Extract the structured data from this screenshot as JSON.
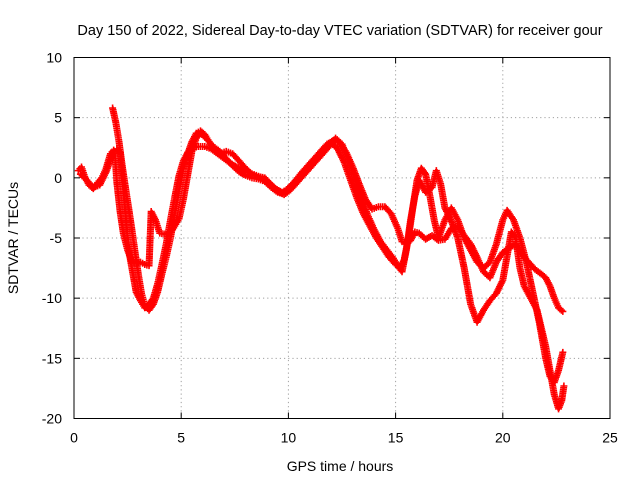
{
  "chart_data": {
    "type": "scatter",
    "title": "Day 150 of 2022, Sidereal Day-to-day VTEC variation (SDTVAR) for receiver gour",
    "xlabel": "GPS time / hours",
    "ylabel": "SDTVAR / TECUs",
    "xlim": [
      0,
      25
    ],
    "ylim": [
      -20,
      10
    ],
    "x_ticks": [
      0,
      5,
      10,
      15,
      20,
      25
    ],
    "y_ticks": [
      -20,
      -15,
      -10,
      -5,
      0,
      5,
      10
    ],
    "grid": true,
    "marker": "+",
    "marker_color": "#ff0000",
    "series": [
      {
        "values": [
          [
            0.2,
            0.6
          ],
          [
            0.35,
            0.9
          ],
          [
            0.5,
            0.1
          ],
          [
            0.7,
            -0.6
          ],
          [
            0.9,
            -0.9
          ],
          [
            1.1,
            -0.4
          ],
          [
            1.3,
            0.0
          ],
          [
            1.5,
            0.8
          ],
          [
            1.7,
            2.0
          ],
          [
            1.85,
            2.3
          ],
          [
            2.0,
            2.4
          ],
          [
            2.15,
            2.2
          ],
          [
            2.3,
            -1.0
          ],
          [
            2.45,
            -4.0
          ],
          [
            2.6,
            -6.5
          ],
          [
            2.75,
            -8.0
          ],
          [
            2.9,
            -9.5
          ],
          [
            3.1,
            -10.2
          ],
          [
            3.3,
            -10.8
          ],
          [
            3.5,
            -10.5
          ],
          [
            3.7,
            -10.0
          ],
          [
            3.9,
            -8.8
          ],
          [
            4.1,
            -7.2
          ],
          [
            4.3,
            -5.5
          ],
          [
            4.5,
            -3.5
          ],
          [
            4.7,
            -1.6
          ],
          [
            4.9,
            0.2
          ],
          [
            5.1,
            1.4
          ],
          [
            5.3,
            2.1
          ],
          [
            5.5,
            2.5
          ],
          [
            5.8,
            2.6
          ],
          [
            6.1,
            2.6
          ],
          [
            6.4,
            2.4
          ],
          [
            6.7,
            2.0
          ],
          [
            7.0,
            1.6
          ],
          [
            7.3,
            1.2
          ],
          [
            7.6,
            0.9
          ],
          [
            7.9,
            0.6
          ],
          [
            8.2,
            0.4
          ],
          [
            8.5,
            0.2
          ],
          [
            8.8,
            0.0
          ],
          [
            9.1,
            -0.4
          ],
          [
            9.4,
            -0.9
          ],
          [
            9.7,
            -1.2
          ],
          [
            9.9,
            -1.0
          ],
          [
            10.2,
            -0.5
          ],
          [
            10.5,
            0.1
          ],
          [
            10.8,
            0.6
          ],
          [
            11.1,
            1.2
          ],
          [
            11.4,
            1.8
          ],
          [
            11.7,
            2.3
          ],
          [
            12.0,
            2.9
          ],
          [
            12.3,
            2.4
          ],
          [
            12.6,
            1.3
          ],
          [
            12.9,
            -0.2
          ],
          [
            13.2,
            -1.7
          ],
          [
            13.5,
            -3.0
          ],
          [
            13.8,
            -4.0
          ],
          [
            14.1,
            -5.0
          ],
          [
            14.4,
            -5.8
          ],
          [
            14.7,
            -6.6
          ],
          [
            15.0,
            -7.2
          ],
          [
            15.2,
            -7.5
          ],
          [
            15.4,
            -6.8
          ],
          [
            15.6,
            -5.0
          ],
          [
            15.8,
            -2.5
          ],
          [
            16.0,
            -0.2
          ],
          [
            16.2,
            0.8
          ],
          [
            16.4,
            0.3
          ],
          [
            16.6,
            -1.5
          ],
          [
            16.8,
            -3.5
          ],
          [
            17.0,
            -5.0
          ],
          [
            17.3,
            -3.5
          ],
          [
            17.6,
            -2.5
          ],
          [
            17.9,
            -3.5
          ],
          [
            18.2,
            -5.0
          ],
          [
            18.5,
            -6.0
          ],
          [
            18.8,
            -7.0
          ],
          [
            19.1,
            -7.5
          ],
          [
            19.4,
            -7.0
          ],
          [
            19.7,
            -5.5
          ],
          [
            20.0,
            -3.5
          ],
          [
            20.2,
            -2.7
          ],
          [
            20.5,
            -3.5
          ],
          [
            20.8,
            -5.0
          ],
          [
            21.1,
            -7.0
          ],
          [
            21.4,
            -9.5
          ],
          [
            21.7,
            -12.0
          ],
          [
            22.0,
            -15.0
          ],
          [
            22.2,
            -16.5
          ],
          [
            22.4,
            -17.0
          ],
          [
            22.6,
            -16.0
          ],
          [
            22.8,
            -14.5
          ]
        ]
      },
      {
        "values": [
          [
            0.3,
            0.3
          ],
          [
            0.6,
            -0.2
          ],
          [
            0.9,
            -0.8
          ],
          [
            1.2,
            -0.6
          ],
          [
            1.5,
            0.5
          ],
          [
            1.7,
            1.5
          ],
          [
            1.9,
            2.2
          ],
          [
            2.0,
            -0.4
          ],
          [
            2.15,
            -2.8
          ],
          [
            2.3,
            -4.6
          ],
          [
            2.5,
            -6.0
          ],
          [
            2.7,
            -7.0
          ],
          [
            2.9,
            -7.1
          ],
          [
            3.1,
            -7.0
          ],
          [
            3.3,
            -7.2
          ],
          [
            3.5,
            -7.3
          ],
          [
            3.6,
            -2.8
          ],
          [
            3.8,
            -3.5
          ],
          [
            4.0,
            -4.6
          ],
          [
            4.3,
            -4.7
          ],
          [
            4.6,
            -4.3
          ],
          [
            4.9,
            -3.4
          ],
          [
            5.1,
            -1.8
          ],
          [
            5.3,
            0.2
          ],
          [
            5.5,
            2.2
          ],
          [
            5.7,
            3.3
          ],
          [
            5.9,
            3.7
          ],
          [
            6.1,
            3.4
          ],
          [
            6.3,
            3.0
          ],
          [
            6.5,
            2.6
          ],
          [
            6.8,
            2.2
          ],
          [
            7.1,
            1.6
          ],
          [
            7.4,
            1.0
          ],
          [
            7.7,
            0.5
          ],
          [
            8.0,
            0.2
          ],
          [
            8.3,
            0.0
          ],
          [
            8.6,
            -0.1
          ],
          [
            8.9,
            -0.3
          ],
          [
            9.2,
            -0.8
          ],
          [
            9.5,
            -1.2
          ],
          [
            9.7,
            -1.3
          ],
          [
            10.0,
            -0.9
          ],
          [
            10.3,
            -0.3
          ],
          [
            10.6,
            0.4
          ],
          [
            10.9,
            1.0
          ],
          [
            11.2,
            1.6
          ],
          [
            11.5,
            2.2
          ],
          [
            11.8,
            2.8
          ],
          [
            12.1,
            3.1
          ],
          [
            12.4,
            2.9
          ],
          [
            12.7,
            2.1
          ],
          [
            13.0,
            0.9
          ],
          [
            13.3,
            -0.5
          ],
          [
            13.6,
            -1.8
          ],
          [
            13.9,
            -2.6
          ],
          [
            14.2,
            -2.4
          ],
          [
            14.5,
            -2.4
          ],
          [
            14.8,
            -3.0
          ],
          [
            15.1,
            -4.2
          ],
          [
            15.3,
            -5.3
          ],
          [
            15.5,
            -5.5
          ],
          [
            15.7,
            -5.2
          ],
          [
            15.9,
            -4.5
          ],
          [
            16.1,
            -4.6
          ],
          [
            16.4,
            -5.1
          ],
          [
            16.7,
            -4.8
          ],
          [
            17.0,
            -5.2
          ],
          [
            17.3,
            -5.1
          ],
          [
            17.6,
            -4.2
          ],
          [
            17.9,
            -4.0
          ],
          [
            18.2,
            -4.8
          ],
          [
            18.5,
            -5.5
          ],
          [
            18.8,
            -6.6
          ],
          [
            19.1,
            -7.8
          ],
          [
            19.4,
            -8.3
          ],
          [
            19.7,
            -7.0
          ],
          [
            20.0,
            -6.2
          ],
          [
            20.3,
            -5.8
          ],
          [
            20.6,
            -5.5
          ],
          [
            20.9,
            -6.4
          ],
          [
            21.2,
            -7.0
          ],
          [
            21.5,
            -7.6
          ],
          [
            21.8,
            -8.0
          ],
          [
            22.0,
            -8.3
          ],
          [
            22.2,
            -9.0
          ],
          [
            22.4,
            -10.0
          ],
          [
            22.6,
            -10.8
          ],
          [
            22.8,
            -11.1
          ]
        ]
      },
      {
        "values": [
          [
            1.8,
            5.8
          ],
          [
            1.95,
            4.6
          ],
          [
            2.1,
            3.0
          ],
          [
            2.25,
            1.0
          ],
          [
            2.4,
            -0.8
          ],
          [
            2.55,
            -2.5
          ],
          [
            2.7,
            -4.3
          ],
          [
            2.85,
            -6.2
          ],
          [
            3.0,
            -8.0
          ],
          [
            3.15,
            -9.6
          ],
          [
            3.3,
            -10.6
          ],
          [
            3.5,
            -11.0
          ],
          [
            3.7,
            -10.5
          ],
          [
            3.9,
            -9.5
          ],
          [
            4.1,
            -8.0
          ],
          [
            4.3,
            -6.6
          ],
          [
            4.5,
            -5.0
          ],
          [
            4.7,
            -3.0
          ],
          [
            4.9,
            -1.0
          ],
          [
            5.1,
            0.8
          ],
          [
            5.3,
            2.0
          ],
          [
            5.5,
            3.0
          ],
          [
            5.7,
            3.7
          ],
          [
            5.9,
            3.9
          ],
          [
            6.1,
            3.6
          ],
          [
            6.3,
            3.0
          ],
          [
            6.5,
            2.4
          ],
          [
            6.8,
            2.0
          ],
          [
            7.1,
            2.2
          ],
          [
            7.4,
            2.0
          ],
          [
            7.7,
            1.4
          ],
          [
            8.0,
            0.8
          ],
          [
            8.3,
            0.3
          ],
          [
            8.6,
            0.1
          ],
          [
            8.9,
            0.0
          ],
          [
            9.2,
            -0.6
          ],
          [
            9.5,
            -1.1
          ],
          [
            9.8,
            -1.4
          ],
          [
            10.1,
            -1.0
          ],
          [
            10.4,
            -0.4
          ],
          [
            10.7,
            0.2
          ],
          [
            11.0,
            0.8
          ],
          [
            11.3,
            1.4
          ],
          [
            11.6,
            2.0
          ],
          [
            11.9,
            2.6
          ],
          [
            12.2,
            3.3
          ],
          [
            12.5,
            2.8
          ],
          [
            12.8,
            1.5
          ],
          [
            13.1,
            0.0
          ],
          [
            13.4,
            -1.6
          ],
          [
            13.7,
            -3.1
          ],
          [
            14.0,
            -4.3
          ],
          [
            14.3,
            -5.3
          ],
          [
            14.6,
            -6.0
          ],
          [
            14.9,
            -6.7
          ],
          [
            15.1,
            -7.3
          ],
          [
            15.3,
            -7.8
          ],
          [
            15.5,
            -6.0
          ],
          [
            15.7,
            -3.5
          ],
          [
            15.9,
            -1.5
          ],
          [
            16.1,
            -0.2
          ],
          [
            16.4,
            -1.2
          ],
          [
            16.7,
            -0.8
          ],
          [
            16.9,
            0.6
          ],
          [
            17.1,
            -0.5
          ],
          [
            17.3,
            -2.5
          ],
          [
            17.6,
            -3.6
          ],
          [
            17.9,
            -5.0
          ],
          [
            18.2,
            -7.5
          ],
          [
            18.5,
            -10.5
          ],
          [
            18.8,
            -12.0
          ],
          [
            19.1,
            -11.0
          ],
          [
            19.4,
            -10.2
          ],
          [
            19.7,
            -9.6
          ],
          [
            20.0,
            -8.5
          ],
          [
            20.2,
            -6.5
          ],
          [
            20.4,
            -4.5
          ],
          [
            20.6,
            -5.0
          ],
          [
            20.8,
            -7.5
          ],
          [
            21.0,
            -9.0
          ],
          [
            21.3,
            -10.0
          ],
          [
            21.6,
            -11.0
          ],
          [
            21.8,
            -12.5
          ],
          [
            22.0,
            -14.0
          ],
          [
            22.2,
            -16.0
          ],
          [
            22.4,
            -18.0
          ],
          [
            22.6,
            -19.2
          ],
          [
            22.75,
            -18.5
          ],
          [
            22.85,
            -17.3
          ]
        ]
      }
    ]
  }
}
